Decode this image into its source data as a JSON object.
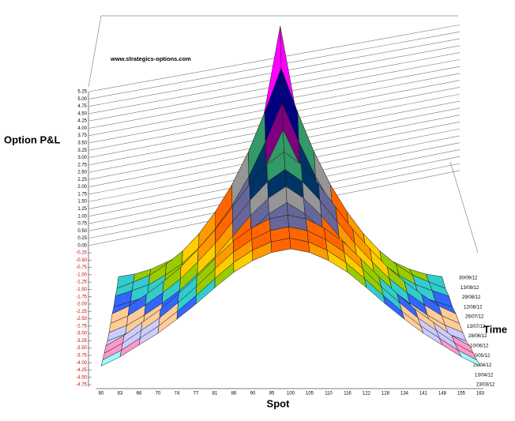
{
  "chart_data": {
    "type": "surface",
    "z_label": "Option P&L",
    "x_label": "Spot",
    "y_label": "Time",
    "watermark": "www.strategics-options.com",
    "categories": [
      "60",
      "63",
      "66",
      "70",
      "74",
      "77",
      "81",
      "86",
      "90",
      "95",
      "100",
      "105",
      "110",
      "116",
      "122",
      "128",
      "134",
      "141",
      "148",
      "155",
      "163"
    ],
    "times": [
      "23/03/12",
      "13/04/12",
      "29/04/12",
      "20/05/12",
      "10/06/12",
      "28/06/12",
      "13/07/12",
      "26/07/12",
      "12/08/12",
      "29/08/12",
      "13/09/12",
      "30/09/12"
    ],
    "values": [
      [
        -4.5,
        -4.14,
        -3.69,
        -3.24,
        -2.7,
        -2.12,
        -1.49,
        -0.9,
        -0.45,
        -0.14,
        0,
        -0.14,
        -0.45,
        -0.9,
        -1.49,
        -2.12,
        -2.7,
        -3.24,
        -3.69,
        -4.14,
        -4.5
      ],
      [
        -4.2,
        -3.84,
        -3.39,
        -2.94,
        -2.4,
        -1.82,
        -1.19,
        -0.6,
        -0.15,
        0.16,
        0.3,
        0.16,
        -0.15,
        -0.6,
        -1.19,
        -1.82,
        -2.4,
        -2.94,
        -3.39,
        -3.84,
        -4.2
      ],
      [
        -3.9,
        -3.54,
        -3.09,
        -2.64,
        -2.1,
        -1.52,
        -0.89,
        -0.3,
        0.15,
        0.47,
        0.6,
        0.47,
        0.15,
        -0.3,
        -0.89,
        -1.52,
        -2.1,
        -2.64,
        -3.09,
        -3.54,
        -3.9
      ],
      [
        -3.6,
        -3.24,
        -2.79,
        -2.34,
        -1.8,
        -1.22,
        -0.59,
        0,
        0.45,
        0.77,
        0.9,
        0.77,
        0.45,
        0,
        -0.59,
        -1.22,
        -1.8,
        -2.34,
        -2.79,
        -3.24,
        -3.6
      ],
      [
        -3.4,
        -3.17,
        -2.85,
        -2.48,
        -2.07,
        -1.56,
        -1.01,
        -0.36,
        0.28,
        0.83,
        1.2,
        0.83,
        0.28,
        -0.36,
        -1.01,
        -1.56,
        -2.07,
        -2.48,
        -2.85,
        -3.17,
        -3.4
      ],
      [
        -3.1,
        -2.87,
        -2.54,
        -2.16,
        -1.74,
        -1.22,
        -0.66,
        0,
        0.66,
        1.22,
        1.6,
        1.22,
        0.66,
        0,
        -0.66,
        -1.22,
        -1.74,
        -2.16,
        -2.54,
        -2.87,
        -3.1
      ],
      [
        -2.8,
        -2.56,
        -2.22,
        -1.84,
        -1.41,
        -0.88,
        -0.3,
        0.37,
        1.04,
        1.62,
        2.0,
        1.62,
        1.04,
        0.37,
        -0.3,
        -0.88,
        -1.41,
        -1.84,
        -2.22,
        -2.56,
        -2.8
      ],
      [
        -2.5,
        -2.26,
        -1.91,
        -1.52,
        -1.08,
        -0.54,
        0.05,
        0.73,
        1.42,
        2.01,
        2.4,
        2.01,
        1.42,
        0.73,
        0.05,
        -0.54,
        -1.08,
        -1.52,
        -1.91,
        -2.26,
        -2.5
      ],
      [
        -2.3,
        -2.14,
        -1.99,
        -1.73,
        -1.42,
        -1.0,
        -0.48,
        0.14,
        0.92,
        1.86,
        2.9,
        1.86,
        0.92,
        0.14,
        -0.48,
        -1.0,
        -1.42,
        -1.73,
        -1.99,
        -2.14,
        -2.3
      ],
      [
        -2.0,
        -1.84,
        -1.67,
        -1.4,
        -1.07,
        -0.63,
        -0.08,
        0.59,
        1.41,
        2.4,
        3.5,
        2.4,
        1.41,
        0.59,
        -0.08,
        -0.63,
        -1.07,
        -1.4,
        -1.67,
        -1.84,
        -2.0
      ],
      [
        -1.8,
        -1.62,
        -1.43,
        -1.13,
        -0.76,
        -0.28,
        0.33,
        1.07,
        1.98,
        3.08,
        4.3,
        3.08,
        1.98,
        1.07,
        0.33,
        -0.28,
        -0.76,
        -1.13,
        -1.43,
        -1.62,
        -1.8
      ],
      [
        -1.5,
        -1.43,
        -1.3,
        -1.1,
        -0.89,
        -0.62,
        -0.15,
        0.46,
        1.4,
        2.89,
        5.25,
        2.89,
        1.4,
        0.46,
        -0.15,
        -0.62,
        -0.89,
        -1.1,
        -1.3,
        -1.43,
        -1.5
      ]
    ],
    "zlim": [
      -4.75,
      5.25
    ],
    "zticks": [
      {
        "value": -4.75,
        "label": "-4.75"
      },
      {
        "value": -4.5,
        "label": "-4.50"
      },
      {
        "value": -4.25,
        "label": "-4.25"
      },
      {
        "value": -4,
        "label": "-4.00"
      },
      {
        "value": -3.75,
        "label": "-3.75"
      },
      {
        "value": -3.5,
        "label": "-3.50"
      },
      {
        "value": -3.25,
        "label": "-3.25"
      },
      {
        "value": -3,
        "label": "-3.00"
      },
      {
        "value": -2.75,
        "label": "-2.75"
      },
      {
        "value": -2.5,
        "label": "-2.50"
      },
      {
        "value": -2.25,
        "label": "-2.25"
      },
      {
        "value": -2,
        "label": "-2.00"
      },
      {
        "value": -1.75,
        "label": "-1.75"
      },
      {
        "value": -1.5,
        "label": "-1.50"
      },
      {
        "value": -1.25,
        "label": "-1.25"
      },
      {
        "value": -1,
        "label": "-1.00"
      },
      {
        "value": -0.75,
        "label": "-0.75"
      },
      {
        "value": -0.5,
        "label": "-0.50"
      },
      {
        "value": -0.25,
        "label": "-0.25"
      },
      {
        "value": 0,
        "label": "0.00"
      },
      {
        "value": 0.25,
        "label": "0.25"
      },
      {
        "value": 0.5,
        "label": "0.50"
      },
      {
        "value": 0.75,
        "label": "0.75"
      },
      {
        "value": 1,
        "label": "1.00"
      },
      {
        "value": 1.25,
        "label": "1.25"
      },
      {
        "value": 1.5,
        "label": "1.50"
      },
      {
        "value": 1.75,
        "label": "1.75"
      },
      {
        "value": 2,
        "label": "2.00"
      },
      {
        "value": 2.25,
        "label": "2.25"
      },
      {
        "value": 2.5,
        "label": "2.50"
      },
      {
        "value": 2.75,
        "label": "2.75"
      },
      {
        "value": 3,
        "label": "3.00"
      },
      {
        "value": 3.25,
        "label": "3.25"
      },
      {
        "value": 3.5,
        "label": "3.50"
      },
      {
        "value": 3.75,
        "label": "3.75"
      },
      {
        "value": 4,
        "label": "4.00"
      },
      {
        "value": 4.25,
        "label": "4.25"
      },
      {
        "value": 4.5,
        "label": "4.50"
      },
      {
        "value": 4.75,
        "label": "4.75"
      },
      {
        "value": 5,
        "label": "5.00"
      },
      {
        "value": 5.25,
        "label": "5.25"
      }
    ],
    "negative_tick_color": "#cc0000",
    "colors": [
      "#ffff99",
      "#99ffff",
      "#ff99cc",
      "#ccccff",
      "#ffcc99",
      "#3366ff",
      "#33cccc",
      "#99cc00",
      "#ffcc00",
      "#ff9900",
      "#ff6600",
      "#666699",
      "#969696",
      "#003366",
      "#339966",
      "#800080",
      "#000080",
      "#ff00ff",
      "#00ffff",
      "#800000"
    ],
    "grid": true
  }
}
